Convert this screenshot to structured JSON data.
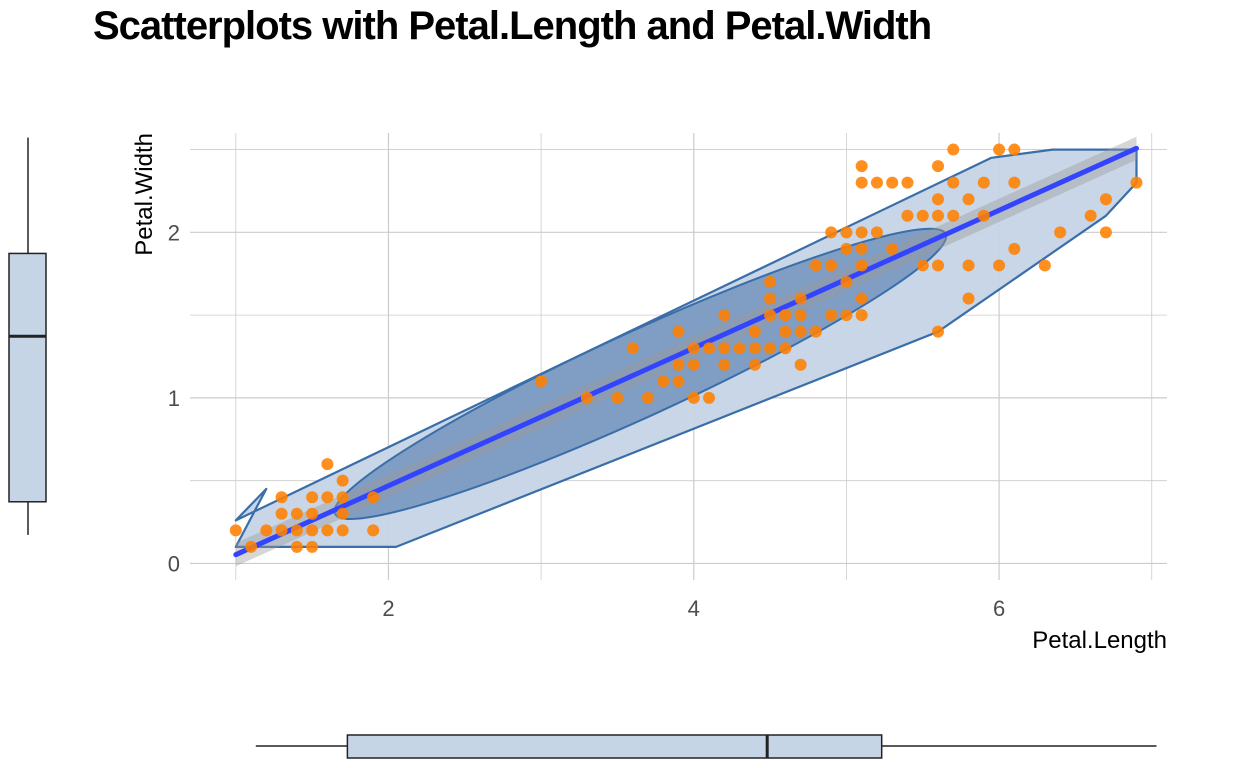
{
  "title": "Scatterplots with Petal.Length and Petal.Width",
  "colors": {
    "points": "#ff7f00",
    "fit_line": "#3344ff",
    "hull_fill": "#c5d4e6",
    "hull_stroke": "#3a6ea8",
    "ellipse_fill": "#7393bd",
    "boxplot_fill": "#c6d5e6",
    "grid": "#cccccc"
  },
  "chart_data": {
    "type": "scatter",
    "title": "Scatterplots with Petal.Length and Petal.Width",
    "xlabel": "Petal.Length",
    "ylabel": "Petal.Width",
    "xlim": [
      0.7,
      7.1
    ],
    "ylim": [
      -0.1,
      2.6
    ],
    "x_ticks": [
      2,
      4,
      6
    ],
    "y_ticks": [
      0,
      1,
      2
    ],
    "x_tick_labels": [
      "2",
      "4",
      "6"
    ],
    "y_tick_labels": [
      "0",
      "1",
      "2"
    ],
    "grid": true,
    "legend": "none",
    "fit": {
      "method": "lm",
      "intercept": -0.363,
      "slope": 0.416,
      "x_range": [
        1.0,
        6.9
      ]
    },
    "hull": [
      [
        1.0,
        0.1
      ],
      [
        2.05,
        0.1
      ],
      [
        5.6,
        1.4
      ],
      [
        6.7,
        2.1
      ],
      [
        6.9,
        2.3
      ],
      [
        6.9,
        2.5
      ],
      [
        6.35,
        2.5
      ],
      [
        5.95,
        2.45
      ],
      [
        1.0,
        0.26
      ],
      [
        1.2,
        0.45
      ]
    ],
    "ellipse": {
      "center": [
        3.9,
        1.2
      ],
      "major_from": [
        1.65,
        0.3
      ],
      "major_to": [
        5.65,
        1.99
      ],
      "half_width": 0.16
    },
    "x_boxplot": {
      "min": 1.0,
      "q1": 1.6,
      "median": 4.35,
      "q3": 5.1,
      "max": 6.9
    },
    "y_boxplot": {
      "min": 0.1,
      "q1": 0.3,
      "median": 1.3,
      "q3": 1.8,
      "max": 2.5
    },
    "points": [
      [
        1.0,
        0.2
      ],
      [
        1.1,
        0.1
      ],
      [
        1.2,
        0.2
      ],
      [
        1.3,
        0.2
      ],
      [
        1.3,
        0.3
      ],
      [
        1.3,
        0.4
      ],
      [
        1.4,
        0.1
      ],
      [
        1.4,
        0.2
      ],
      [
        1.4,
        0.3
      ],
      [
        1.5,
        0.1
      ],
      [
        1.5,
        0.2
      ],
      [
        1.5,
        0.3
      ],
      [
        1.5,
        0.4
      ],
      [
        1.6,
        0.2
      ],
      [
        1.6,
        0.4
      ],
      [
        1.6,
        0.6
      ],
      [
        1.7,
        0.2
      ],
      [
        1.7,
        0.3
      ],
      [
        1.7,
        0.4
      ],
      [
        1.7,
        0.5
      ],
      [
        1.9,
        0.2
      ],
      [
        1.9,
        0.4
      ],
      [
        3.0,
        1.1
      ],
      [
        3.3,
        1.0
      ],
      [
        3.5,
        1.0
      ],
      [
        3.6,
        1.3
      ],
      [
        3.7,
        1.0
      ],
      [
        3.8,
        1.1
      ],
      [
        3.9,
        1.1
      ],
      [
        3.9,
        1.2
      ],
      [
        3.9,
        1.4
      ],
      [
        4.0,
        1.0
      ],
      [
        4.0,
        1.2
      ],
      [
        4.0,
        1.3
      ],
      [
        4.1,
        1.0
      ],
      [
        4.1,
        1.3
      ],
      [
        4.2,
        1.2
      ],
      [
        4.2,
        1.3
      ],
      [
        4.2,
        1.5
      ],
      [
        4.3,
        1.3
      ],
      [
        4.4,
        1.2
      ],
      [
        4.4,
        1.3
      ],
      [
        4.4,
        1.4
      ],
      [
        4.5,
        1.3
      ],
      [
        4.5,
        1.5
      ],
      [
        4.5,
        1.6
      ],
      [
        4.5,
        1.7
      ],
      [
        4.6,
        1.3
      ],
      [
        4.6,
        1.4
      ],
      [
        4.6,
        1.5
      ],
      [
        4.7,
        1.2
      ],
      [
        4.7,
        1.4
      ],
      [
        4.7,
        1.5
      ],
      [
        4.7,
        1.6
      ],
      [
        4.8,
        1.4
      ],
      [
        4.8,
        1.8
      ],
      [
        4.9,
        1.5
      ],
      [
        4.9,
        1.8
      ],
      [
        4.9,
        2.0
      ],
      [
        5.0,
        1.5
      ],
      [
        5.0,
        1.7
      ],
      [
        5.0,
        1.9
      ],
      [
        5.0,
        2.0
      ],
      [
        5.1,
        1.5
      ],
      [
        5.1,
        1.6
      ],
      [
        5.1,
        1.8
      ],
      [
        5.1,
        1.9
      ],
      [
        5.1,
        2.0
      ],
      [
        5.1,
        2.3
      ],
      [
        5.1,
        2.4
      ],
      [
        5.2,
        2.0
      ],
      [
        5.2,
        2.3
      ],
      [
        5.3,
        1.9
      ],
      [
        5.3,
        2.3
      ],
      [
        5.4,
        2.1
      ],
      [
        5.4,
        2.3
      ],
      [
        5.5,
        1.8
      ],
      [
        5.5,
        2.1
      ],
      [
        5.6,
        1.4
      ],
      [
        5.6,
        1.8
      ],
      [
        5.6,
        2.1
      ],
      [
        5.6,
        2.2
      ],
      [
        5.6,
        2.4
      ],
      [
        5.7,
        2.1
      ],
      [
        5.7,
        2.3
      ],
      [
        5.7,
        2.5
      ],
      [
        5.8,
        1.6
      ],
      [
        5.8,
        1.8
      ],
      [
        5.8,
        2.2
      ],
      [
        5.9,
        2.1
      ],
      [
        5.9,
        2.3
      ],
      [
        6.0,
        1.8
      ],
      [
        6.0,
        2.5
      ],
      [
        6.1,
        1.9
      ],
      [
        6.1,
        2.3
      ],
      [
        6.1,
        2.5
      ],
      [
        6.3,
        1.8
      ],
      [
        6.4,
        2.0
      ],
      [
        6.6,
        2.1
      ],
      [
        6.7,
        2.0
      ],
      [
        6.7,
        2.2
      ],
      [
        6.9,
        2.3
      ]
    ]
  }
}
